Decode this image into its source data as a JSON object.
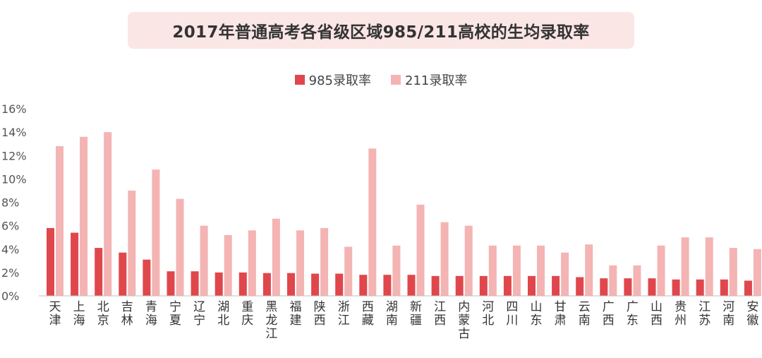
{
  "chart_data": {
    "type": "bar",
    "title": "2017年普通高考各省级区域985/211高校的生均录取率",
    "legend_position": "top-center",
    "colors": {
      "985": "#e0474c",
      "211": "#f4b4b4",
      "axis": "#bfbfbf"
    },
    "yticks": [
      "0%",
      "2%",
      "4%",
      "6%",
      "8%",
      "10%",
      "12%",
      "14%",
      "16%"
    ],
    "ylim": [
      0,
      16
    ],
    "categories": [
      "天津",
      "上海",
      "北京",
      "吉林",
      "青海",
      "宁夏",
      "辽宁",
      "湖北",
      "重庆",
      "黑龙江",
      "福建",
      "陕西",
      "浙江",
      "西藏",
      "湖南",
      "新疆",
      "江西",
      "内蒙古",
      "河北",
      "四川",
      "山东",
      "甘肃",
      "云南",
      "广西",
      "广东",
      "山西",
      "贵州",
      "江苏",
      "河南",
      "安徽"
    ],
    "series": [
      {
        "name": "985录取率",
        "color": "#e0474c",
        "values": [
          5.8,
          5.4,
          4.1,
          3.7,
          3.1,
          2.1,
          2.1,
          2.0,
          2.0,
          1.95,
          1.95,
          1.9,
          1.9,
          1.8,
          1.8,
          1.8,
          1.7,
          1.7,
          1.7,
          1.7,
          1.7,
          1.7,
          1.6,
          1.5,
          1.5,
          1.5,
          1.4,
          1.4,
          1.4,
          1.3
        ]
      },
      {
        "name": "211录取率",
        "color": "#f4b4b4",
        "values": [
          12.8,
          13.6,
          14.0,
          9.0,
          10.8,
          8.3,
          6.0,
          5.2,
          5.6,
          6.6,
          5.6,
          5.8,
          4.2,
          12.6,
          4.3,
          7.8,
          6.3,
          6.0,
          4.3,
          4.3,
          4.3,
          3.7,
          4.4,
          2.6,
          2.6,
          4.3,
          5.0,
          5.0,
          4.1,
          4.0
        ]
      }
    ]
  }
}
